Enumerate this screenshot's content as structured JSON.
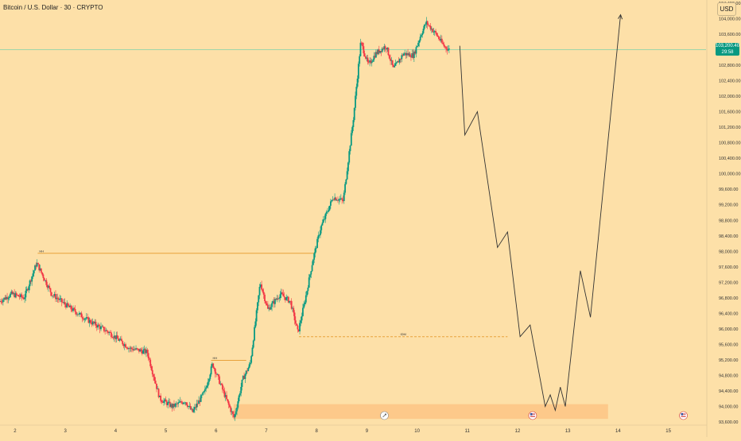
{
  "header": {
    "title": "Bitcoin / U.S. Dollar · 30 · CRYPTO",
    "currency": "USD"
  },
  "colors": {
    "background": "#fde0a8",
    "up": "#089981",
    "down": "#f23645",
    "level_line": "#e8a23b",
    "current_price_line": "#9ed6a9",
    "zone_fill": "#fdc98a",
    "projection_line": "#333333"
  },
  "chart_data": {
    "type": "candlestick",
    "title": "",
    "xlabel": "",
    "ylabel": "",
    "y_axis": {
      "ticks": [
        93600,
        94000,
        94400,
        94800,
        95200,
        95600,
        96000,
        96400,
        96800,
        97200,
        97600,
        98000,
        98400,
        98800,
        99200,
        99600,
        100000,
        100400,
        100800,
        101200,
        101600,
        102000,
        102400,
        102800,
        103600,
        104000,
        104400
      ],
      "tick_labels": [
        "93,600.00",
        "94,000.00",
        "94,400.00",
        "94,800.00",
        "95,200.00",
        "95,600.00",
        "96,000.00",
        "96,400.00",
        "96,800.00",
        "97,200.00",
        "97,600.00",
        "98,000.00",
        "98,400.00",
        "98,800.00",
        "99,200.00",
        "99,600.00",
        "100,000.00",
        "100,400.00",
        "100,800.00",
        "101,200.00",
        "101,600.00",
        "102,000.00",
        "102,400.00",
        "102,800.00",
        "103,600.00",
        "104,000.00",
        "104,400.00"
      ],
      "ylim": [
        93520,
        104480
      ]
    },
    "x_axis": {
      "ticks": [
        2,
        3,
        4,
        5,
        6,
        7,
        8,
        9,
        10,
        11,
        12,
        13,
        14,
        15
      ],
      "tick_labels": [
        "2",
        "3",
        "4",
        "5",
        "6",
        "7",
        "8",
        "9",
        "10",
        "11",
        "12",
        "13",
        "14",
        "15"
      ],
      "xlim": [
        1.7,
        15.75
      ]
    },
    "current_price": {
      "value": 103200.4,
      "label": "103,200.40",
      "countdown": "29:58"
    },
    "key_points": [
      {
        "x": 1.7,
        "y": 96700
      },
      {
        "x": 1.95,
        "y": 96900
      },
      {
        "x": 2.2,
        "y": 96800
      },
      {
        "x": 2.45,
        "y": 97700
      },
      {
        "x": 2.75,
        "y": 96900
      },
      {
        "x": 3.1,
        "y": 96550
      },
      {
        "x": 3.5,
        "y": 96200
      },
      {
        "x": 3.9,
        "y": 95900
      },
      {
        "x": 4.3,
        "y": 95500
      },
      {
        "x": 4.65,
        "y": 95400
      },
      {
        "x": 4.9,
        "y": 94200
      },
      {
        "x": 5.15,
        "y": 94000
      },
      {
        "x": 5.4,
        "y": 94150
      },
      {
        "x": 5.55,
        "y": 93850
      },
      {
        "x": 5.8,
        "y": 94400
      },
      {
        "x": 5.95,
        "y": 95100
      },
      {
        "x": 6.1,
        "y": 94600
      },
      {
        "x": 6.25,
        "y": 94100
      },
      {
        "x": 6.38,
        "y": 93700
      },
      {
        "x": 6.55,
        "y": 94700
      },
      {
        "x": 6.7,
        "y": 95100
      },
      {
        "x": 6.9,
        "y": 97200
      },
      {
        "x": 7.05,
        "y": 96500
      },
      {
        "x": 7.3,
        "y": 96900
      },
      {
        "x": 7.5,
        "y": 96700
      },
      {
        "x": 7.65,
        "y": 95900
      },
      {
        "x": 7.8,
        "y": 96800
      },
      {
        "x": 7.95,
        "y": 97800
      },
      {
        "x": 8.1,
        "y": 98600
      },
      {
        "x": 8.35,
        "y": 99400
      },
      {
        "x": 8.55,
        "y": 99300
      },
      {
        "x": 8.75,
        "y": 101400
      },
      {
        "x": 8.9,
        "y": 103400
      },
      {
        "x": 9.05,
        "y": 102800
      },
      {
        "x": 9.2,
        "y": 103100
      },
      {
        "x": 9.4,
        "y": 103300
      },
      {
        "x": 9.55,
        "y": 102700
      },
      {
        "x": 9.75,
        "y": 103100
      },
      {
        "x": 9.95,
        "y": 103050
      },
      {
        "x": 10.1,
        "y": 103600
      },
      {
        "x": 10.2,
        "y": 103900
      },
      {
        "x": 10.4,
        "y": 103600
      },
      {
        "x": 10.55,
        "y": 103300
      },
      {
        "x": 10.65,
        "y": 103200
      }
    ],
    "candle_seed": 7,
    "levels": [
      {
        "label": "HH",
        "value": 97950,
        "x_start": 2.45,
        "x_end": 7.95,
        "style": "solid"
      },
      {
        "label": "HH",
        "value": 95190,
        "x_start": 5.9,
        "x_end": 6.6,
        "style": "solid"
      },
      {
        "label": "IDM",
        "value": 95800,
        "x_start": 7.65,
        "x_end": 11.8,
        "style": "dashed"
      }
    ],
    "zone": {
      "y_low": 93680,
      "y_high": 94060,
      "x_start": 6.35,
      "x_end": 13.8
    },
    "projection_path": [
      {
        "x": 10.85,
        "y": 103300
      },
      {
        "x": 10.95,
        "y": 101000
      },
      {
        "x": 11.2,
        "y": 101600
      },
      {
        "x": 11.6,
        "y": 98100
      },
      {
        "x": 11.8,
        "y": 98500
      },
      {
        "x": 12.05,
        "y": 95800
      },
      {
        "x": 12.25,
        "y": 96100
      },
      {
        "x": 12.55,
        "y": 94000
      },
      {
        "x": 12.65,
        "y": 94300
      },
      {
        "x": 12.75,
        "y": 93900
      },
      {
        "x": 12.85,
        "y": 94500
      },
      {
        "x": 12.95,
        "y": 94000
      },
      {
        "x": 13.25,
        "y": 97500
      },
      {
        "x": 13.45,
        "y": 96300
      },
      {
        "x": 14.05,
        "y": 104100
      }
    ],
    "event_markers": [
      {
        "x": 12.3,
        "icon": "us-flag-icon"
      },
      {
        "x": 15.3,
        "icon": "us-flag-icon"
      }
    ],
    "misc_marker": {
      "x": 9.35,
      "icon": "rocket-icon"
    }
  }
}
